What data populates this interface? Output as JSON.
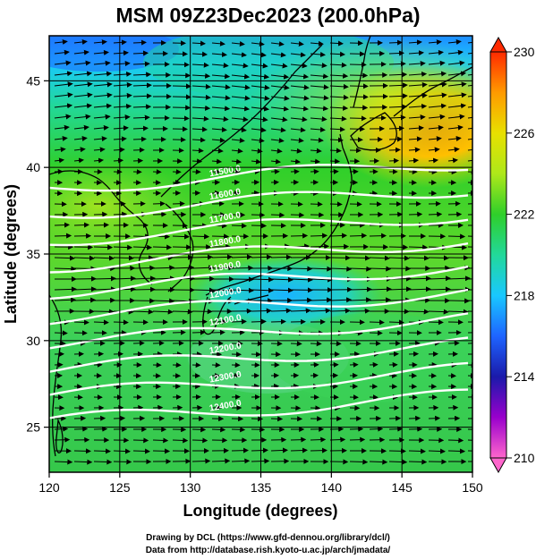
{
  "title": "MSM 09Z23Dec2023 (200.0hPa)",
  "map": {
    "xlabel": "Longitude (degrees)",
    "ylabel": "Latitude  (degrees)",
    "xlim": [
      120,
      150
    ],
    "ylim": [
      22.4,
      47.6
    ],
    "xticks": [
      120,
      125,
      130,
      135,
      140,
      145,
      150
    ],
    "yticks": [
      25,
      30,
      35,
      40,
      45
    ],
    "grid": true,
    "field": "temperature shading with wind vectors and geopotential height contours"
  },
  "colorbar": {
    "min": 210,
    "max": 230,
    "ticks": [
      210,
      214,
      218,
      222,
      226,
      230
    ],
    "colors": [
      "#ff66cc",
      "#9900cc",
      "#1a1aaa",
      "#1e64ff",
      "#19c8ff",
      "#22d89a",
      "#2fcf2a",
      "#aee81a",
      "#e8e000",
      "#ff9a00",
      "#ff2a00"
    ]
  },
  "contours": {
    "color": "#ffffff",
    "labels": [
      "11500.0",
      "11600.0",
      "11700.0",
      "11800.0",
      "11900.0",
      "12000.0",
      "12100.0",
      "12200.0",
      "12300.0",
      "12400.0"
    ]
  },
  "footer": {
    "line1": "Drawing by DCL (https://www.gfd-dennou.org/library/dcl/)",
    "line2": "Data from http://database.rish.kyoto-u.ac.jp/arch/jmadata/"
  }
}
